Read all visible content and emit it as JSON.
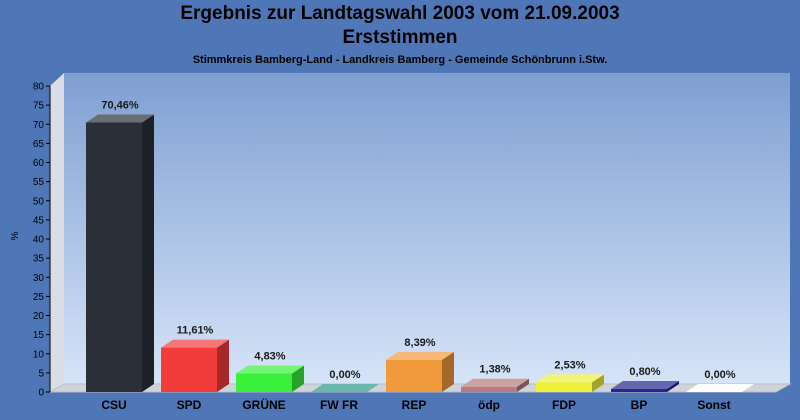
{
  "chart_data": {
    "type": "bar",
    "title": "Ergebnis zur Landtagswahl 2003 vom 21.09.2003",
    "subtitle": "Erststimmen",
    "caption": "Stimmkreis Bamberg-Land - Landkreis Bamberg - Gemeinde Schönbrunn i.Stw.",
    "ylabel": "%",
    "xlabel": "",
    "ylim": [
      0,
      80
    ],
    "yticks": [
      0,
      5,
      10,
      15,
      20,
      25,
      30,
      35,
      40,
      45,
      50,
      55,
      60,
      65,
      70,
      75,
      80
    ],
    "grid": false,
    "categories": [
      "CSU",
      "SPD",
      "GRÜNE",
      "FW FR",
      "REP",
      "ödp",
      "FDP",
      "BP",
      "Sonst"
    ],
    "values": [
      70.46,
      11.61,
      4.83,
      0.0,
      8.39,
      1.38,
      2.53,
      0.8,
      0.0
    ],
    "value_labels": [
      "70,46%",
      "11,61%",
      "4,83%",
      "0,00%",
      "8,39%",
      "1,38%",
      "2,53%",
      "0,80%",
      "0,00%"
    ],
    "colors": [
      "#2b2f38",
      "#f23c3c",
      "#3af03a",
      "#2a9a8a",
      "#f09a3c",
      "#b87a7a",
      "#f0f03a",
      "#26268c",
      "#ffffff"
    ]
  }
}
